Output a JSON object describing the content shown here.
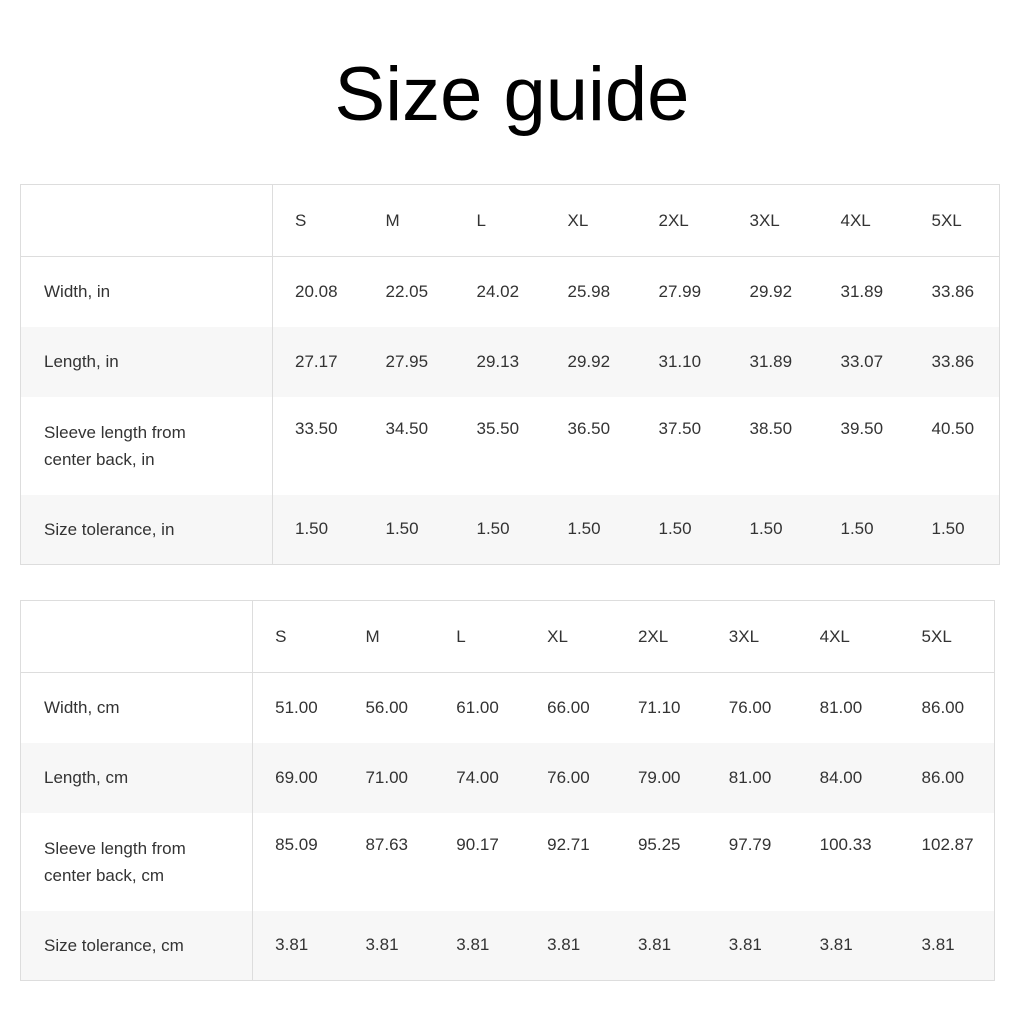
{
  "title": "Size guide",
  "tables": [
    {
      "sizes": [
        "S",
        "M",
        "L",
        "XL",
        "2XL",
        "3XL",
        "4XL",
        "5XL"
      ],
      "rows": [
        {
          "label": "Width, in",
          "values": [
            "20.08",
            "22.05",
            "24.02",
            "25.98",
            "27.99",
            "29.92",
            "31.89",
            "33.86"
          ]
        },
        {
          "label": "Length, in",
          "values": [
            "27.17",
            "27.95",
            "29.13",
            "29.92",
            "31.10",
            "31.89",
            "33.07",
            "33.86"
          ]
        },
        {
          "label": "Sleeve length from center back, in",
          "values": [
            "33.50",
            "34.50",
            "35.50",
            "36.50",
            "37.50",
            "38.50",
            "39.50",
            "40.50"
          ]
        },
        {
          "label": "Size tolerance, in",
          "values": [
            "1.50",
            "1.50",
            "1.50",
            "1.50",
            "1.50",
            "1.50",
            "1.50",
            "1.50"
          ]
        }
      ]
    },
    {
      "sizes": [
        "S",
        "M",
        "L",
        "XL",
        "2XL",
        "3XL",
        "4XL",
        "5XL"
      ],
      "rows": [
        {
          "label": "Width, cm",
          "values": [
            "51.00",
            "56.00",
            "61.00",
            "66.00",
            "71.10",
            "76.00",
            "81.00",
            "86.00"
          ]
        },
        {
          "label": "Length, cm",
          "values": [
            "69.00",
            "71.00",
            "74.00",
            "76.00",
            "79.00",
            "81.00",
            "84.00",
            "86.00"
          ]
        },
        {
          "label": "Sleeve length from center back, cm",
          "values": [
            "85.09",
            "87.63",
            "90.17",
            "92.71",
            "95.25",
            "97.79",
            "100.33",
            "102.87"
          ]
        },
        {
          "label": "Size tolerance, cm",
          "values": [
            "3.81",
            "3.81",
            "3.81",
            "3.81",
            "3.81",
            "3.81",
            "3.81",
            "3.81"
          ]
        }
      ]
    }
  ]
}
